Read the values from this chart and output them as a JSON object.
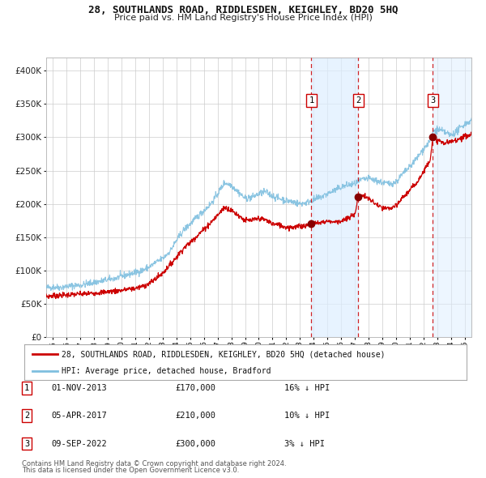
{
  "title": "28, SOUTHLANDS ROAD, RIDDLESDEN, KEIGHLEY, BD20 5HQ",
  "subtitle": "Price paid vs. HM Land Registry's House Price Index (HPI)",
  "legend_line1": "28, SOUTHLANDS ROAD, RIDDLESDEN, KEIGHLEY, BD20 5HQ (detached house)",
  "legend_line2": "HPI: Average price, detached house, Bradford",
  "footnote1": "Contains HM Land Registry data © Crown copyright and database right 2024.",
  "footnote2": "This data is licensed under the Open Government Licence v3.0.",
  "sales": [
    {
      "num": 1,
      "date": "01-NOV-2013",
      "price": 170000,
      "pct": "16%",
      "dir": "↓"
    },
    {
      "num": 2,
      "date": "05-APR-2017",
      "price": 210000,
      "pct": "10%",
      "dir": "↓"
    },
    {
      "num": 3,
      "date": "09-SEP-2022",
      "price": 300000,
      "pct": "3%",
      "dir": "↓"
    }
  ],
  "sale_dates_decimal": [
    2013.836,
    2017.258,
    2022.688
  ],
  "sale_prices": [
    170000,
    210000,
    300000
  ],
  "hpi_color": "#7fbfdf",
  "price_color": "#cc0000",
  "sale_dot_color": "#880000",
  "vline_color": "#cc0000",
  "shade_color": "#ddeeff",
  "grid_color": "#cccccc",
  "background_color": "#ffffff",
  "ylim": [
    0,
    420000
  ],
  "yticks": [
    0,
    50000,
    100000,
    150000,
    200000,
    250000,
    300000,
    350000,
    400000
  ],
  "xlim_start": 1994.5,
  "xlim_end": 2025.5,
  "xtick_years": [
    1995,
    1996,
    1997,
    1998,
    1999,
    2000,
    2001,
    2002,
    2003,
    2004,
    2005,
    2006,
    2007,
    2008,
    2009,
    2010,
    2011,
    2012,
    2013,
    2014,
    2015,
    2016,
    2017,
    2018,
    2019,
    2020,
    2021,
    2022,
    2023,
    2024,
    2025
  ]
}
